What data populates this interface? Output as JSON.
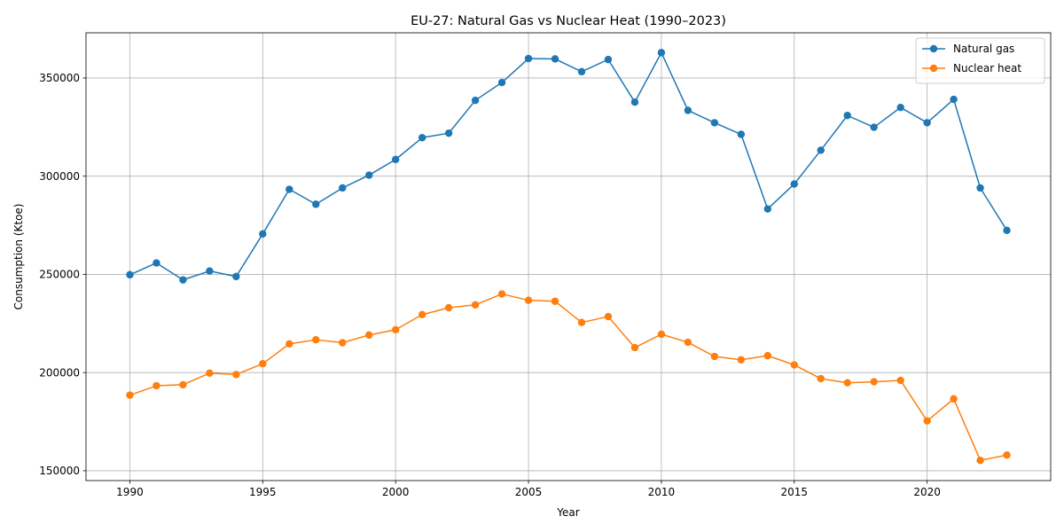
{
  "chart_data": {
    "type": "line",
    "title": "EU-27: Natural Gas vs Nuclear Heat (1990–2023)",
    "xlabel": "Year",
    "ylabel": "Consumption (Ktoe)",
    "xlim": [
      1988.35,
      2024.65
    ],
    "ylim": [
      145000,
      373000
    ],
    "x_ticks": [
      1990,
      1995,
      2000,
      2005,
      2010,
      2015,
      2020
    ],
    "y_ticks": [
      150000,
      200000,
      250000,
      300000,
      350000
    ],
    "grid": true,
    "legend_position": "top-right",
    "x": [
      1990,
      1991,
      1992,
      1993,
      1994,
      1995,
      1996,
      1997,
      1998,
      1999,
      2000,
      2001,
      2002,
      2003,
      2004,
      2005,
      2006,
      2007,
      2008,
      2009,
      2010,
      2011,
      2012,
      2013,
      2014,
      2015,
      2016,
      2017,
      2018,
      2019,
      2020,
      2021,
      2022,
      2023
    ],
    "series": [
      {
        "name": "Natural gas",
        "color": "#1f77b4",
        "values": [
          249800,
          255800,
          247200,
          251700,
          248900,
          270600,
          293300,
          285700,
          294000,
          300500,
          308500,
          319600,
          321900,
          338600,
          347700,
          359900,
          359700,
          353200,
          359400,
          337700,
          362900,
          333500,
          327200,
          321300,
          283300,
          296000,
          313200,
          330900,
          324900,
          335000,
          327200,
          339100,
          294000,
          272400
        ]
      },
      {
        "name": "Nuclear heat",
        "color": "#ff7f0e",
        "values": [
          188500,
          193300,
          193800,
          199700,
          199000,
          204500,
          214600,
          216700,
          215200,
          219100,
          221800,
          229500,
          233000,
          234500,
          240000,
          236800,
          236300,
          225500,
          228500,
          212700,
          219500,
          215400,
          208200,
          206500,
          208600,
          203900,
          196900,
          194800,
          195300,
          196000,
          175400,
          186600,
          155300,
          158000
        ]
      }
    ]
  }
}
